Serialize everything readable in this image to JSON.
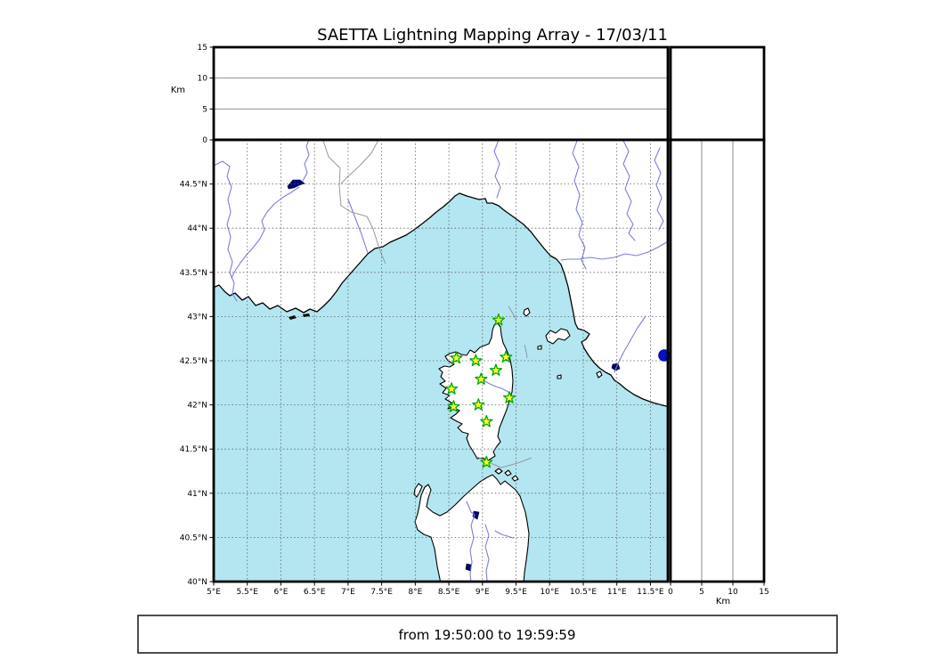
{
  "figure": {
    "title": "SAETTA Lightning Mapping Array - 17/03/11",
    "footer_text": "from 19:50:00 to 19:59:59"
  },
  "altitude_panels": {
    "axis_label": "Km",
    "tick_labels": [
      "0",
      "5",
      "10",
      "15"
    ],
    "tick_values_km": [
      0,
      5,
      10,
      15
    ],
    "gridline_values_km": [
      5,
      10
    ],
    "max_km": 15
  },
  "map": {
    "lon_tick_labels": [
      "5°E",
      "5.5°E",
      "6°E",
      "6.5°E",
      "7°E",
      "7.5°E",
      "8°E",
      "8.5°E",
      "9°E",
      "9.5°E",
      "10°E",
      "10.5°E",
      "11°E",
      "11.5°E"
    ],
    "lon_tick_values": [
      5,
      5.5,
      6,
      6.5,
      7,
      7.5,
      8,
      8.5,
      9,
      9.5,
      10,
      10.5,
      11,
      11.5
    ],
    "lat_tick_labels": [
      "44.5°N",
      "44°N",
      "43.5°N",
      "43°N",
      "42.5°N",
      "42°N",
      "41.5°N",
      "41°N",
      "40.5°N",
      "40°N"
    ],
    "lat_tick_values": [
      44.5,
      44,
      43.5,
      43,
      42.5,
      42,
      41.5,
      41,
      40.5,
      40
    ],
    "extent": {
      "lon_min": 5,
      "lon_max": 11.76,
      "lat_min": 40,
      "lat_max": 45
    },
    "stations": [
      {
        "lon": 9.24,
        "lat": 42.96
      },
      {
        "lon": 8.61,
        "lat": 42.53
      },
      {
        "lon": 8.9,
        "lat": 42.5
      },
      {
        "lon": 9.35,
        "lat": 42.54
      },
      {
        "lon": 9.2,
        "lat": 42.39
      },
      {
        "lon": 8.98,
        "lat": 42.29
      },
      {
        "lon": 8.54,
        "lat": 42.18
      },
      {
        "lon": 9.4,
        "lat": 42.08
      },
      {
        "lon": 8.94,
        "lat": 42.0
      },
      {
        "lon": 8.57,
        "lat": 41.98
      },
      {
        "lon": 9.06,
        "lat": 41.81
      },
      {
        "lon": 9.06,
        "lat": 41.35
      }
    ],
    "lightning_sources": [
      {
        "lon": 11.71,
        "lat": 42.56,
        "alt_km": 0
      }
    ]
  },
  "colors": {
    "sea": "#b3e6f0",
    "land": "#ffffff",
    "coastline": "#000000",
    "river": "#7d7de0",
    "country_border": "#999999",
    "grid": "#606060",
    "station_fill": "#ffff2e",
    "station_edge": "#00a800",
    "source": "#0011cc",
    "lake": "#000080"
  }
}
